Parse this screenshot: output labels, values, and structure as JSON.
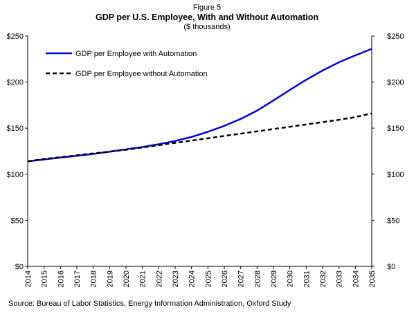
{
  "figure_label": "Figure 5",
  "title": "GDP per U.S. Employee, With and Without Automation",
  "subtitle": "($ thousands)",
  "source": "Source: Bureau of Labor Statistics, Energy Information Administration, Oxford Study",
  "colors": {
    "with_automation": "#0000e6",
    "without_automation": "#000000"
  },
  "chart_data": {
    "type": "line",
    "title": "GDP per U.S. Employee, With and Without Automation",
    "subtitle": "($ thousands)",
    "x": [
      "2014",
      "2015",
      "2016",
      "2017",
      "2018",
      "2019",
      "2020",
      "2021",
      "2022",
      "2023",
      "2024",
      "2025",
      "2026",
      "2027",
      "2028",
      "2029",
      "2030",
      "2031",
      "2032",
      "2033",
      "2034",
      "2035"
    ],
    "series": [
      {
        "name": "GDP per Employee with Automation",
        "style": "solid",
        "values": [
          114,
          116,
          118,
          120,
          122,
          124.5,
          127,
          129.5,
          132.5,
          136,
          140.5,
          146,
          152.5,
          160,
          169,
          180,
          191.5,
          202.5,
          212.5,
          221.5,
          229,
          236
        ]
      },
      {
        "name": "GDP per Employee without Automation",
        "style": "dashed",
        "values": [
          114,
          116.5,
          118.5,
          120.5,
          122.5,
          124.5,
          126.5,
          129,
          131.5,
          134,
          136.5,
          139,
          141.5,
          144,
          146.5,
          149,
          151.5,
          154,
          156.5,
          159,
          162,
          166
        ]
      }
    ],
    "y_ticks": [
      "$0",
      "$50",
      "$100",
      "$150",
      "$200",
      "$250"
    ],
    "ylim": [
      0,
      250
    ],
    "y_axis_sides": "left-and-right",
    "grid": false,
    "legend_placement": "top-left"
  }
}
